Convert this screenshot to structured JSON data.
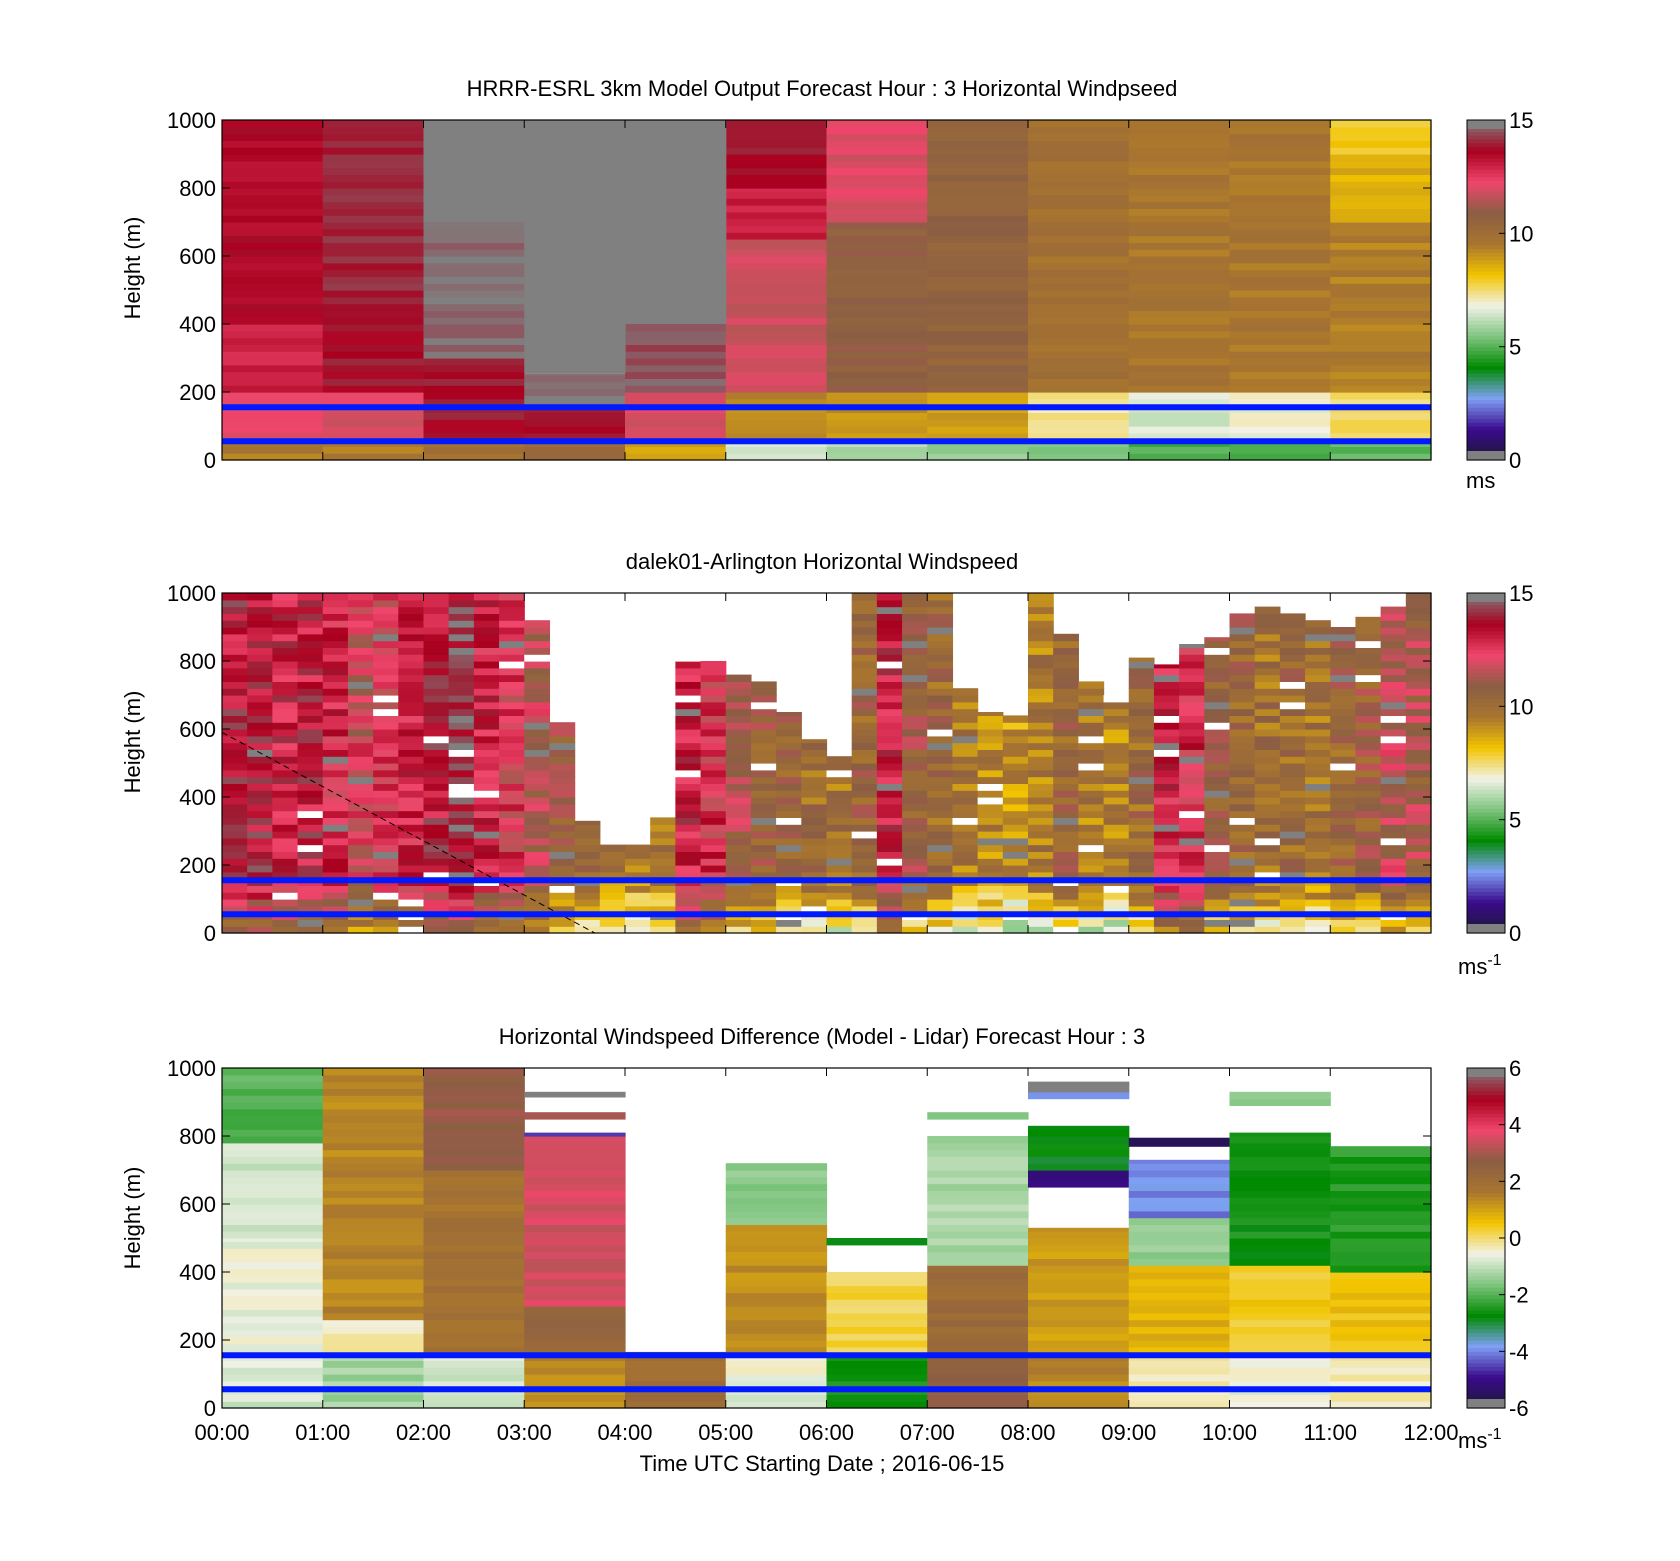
{
  "figure": {
    "xlabel": "Time UTC  Starting Date ; 2016-06-15",
    "x_tick_labels": [
      "00:00",
      "01:00",
      "02:00",
      "03:00",
      "04:00",
      "05:00",
      "06:00",
      "07:00",
      "08:00",
      "09:00",
      "10:00",
      "11:00",
      "12:00"
    ]
  },
  "colors": {
    "background": "#ffffff",
    "missing_gray": "#808080",
    "reference_line_blue": "#0019ff",
    "colormap_stops": [
      "#1a1a33",
      "#3a0a8c",
      "#7fa0f5",
      "#008a00",
      "#7ec47e",
      "#f2f2e8",
      "#f2c400",
      "#a8752f",
      "#8b5e44",
      "#f0466c",
      "#a8001e",
      "#808080"
    ]
  },
  "chart_data": [
    {
      "type": "heatmap",
      "title": "HRRR-ESRL 3km Model Output   Forecast Hour : 3 Horizontal Windpseed",
      "ylabel": "Height (m)",
      "xlim": [
        0,
        12
      ],
      "ylim": [
        0,
        1000
      ],
      "y_tick_labels": [
        "0",
        "200",
        "400",
        "600",
        "800",
        "1000"
      ],
      "colorbar": {
        "clim": [
          0,
          15
        ],
        "tick_labels": [
          "0",
          "5",
          "10",
          "15"
        ],
        "unit_label": "ms",
        "unit_superscript": ""
      },
      "reference_lines_m": [
        55,
        155
      ],
      "cells": [
        {
          "x0": 0,
          "x1": 1,
          "y0": 0,
          "y1": 60,
          "v": 9.5
        },
        {
          "x0": 0,
          "x1": 1,
          "y0": 60,
          "y1": 200,
          "v": 12.2
        },
        {
          "x0": 0,
          "x1": 1,
          "y0": 200,
          "y1": 400,
          "v": 13.0
        },
        {
          "x0": 0,
          "x1": 1,
          "y0": 400,
          "y1": 1000,
          "v": 13.5
        },
        {
          "x0": 1,
          "x1": 2,
          "y0": 0,
          "y1": 60,
          "v": 9.5
        },
        {
          "x0": 1,
          "x1": 2,
          "y0": 60,
          "y1": 200,
          "v": 12.0
        },
        {
          "x0": 1,
          "x1": 2,
          "y0": 200,
          "y1": 400,
          "v": 13.8
        },
        {
          "x0": 1,
          "x1": 2,
          "y0": 400,
          "y1": 1000,
          "v": 14.0
        },
        {
          "x0": 2,
          "x1": 3,
          "y0": 0,
          "y1": 60,
          "v": 9.8
        },
        {
          "x0": 2,
          "x1": 3,
          "y0": 60,
          "y1": 300,
          "v": 13.8
        },
        {
          "x0": 2,
          "x1": 3,
          "y0": 300,
          "y1": 700,
          "v": 14.8
        },
        {
          "x0": 3,
          "x1": 4,
          "y0": 0,
          "y1": 60,
          "v": 10.2
        },
        {
          "x0": 3,
          "x1": 4,
          "y0": 60,
          "y1": 150,
          "v": 13.8
        },
        {
          "x0": 3,
          "x1": 4,
          "y0": 150,
          "y1": 255,
          "v": 14.9
        },
        {
          "x0": 4,
          "x1": 5,
          "y0": 0,
          "y1": 60,
          "v": 8.6
        },
        {
          "x0": 4,
          "x1": 5,
          "y0": 60,
          "y1": 200,
          "v": 12.0
        },
        {
          "x0": 4,
          "x1": 5,
          "y0": 200,
          "y1": 400,
          "v": 14.5
        },
        {
          "x0": 5,
          "x1": 6,
          "y0": 0,
          "y1": 60,
          "v": 6.5
        },
        {
          "x0": 5,
          "x1": 6,
          "y0": 60,
          "y1": 200,
          "v": 9.2
        },
        {
          "x0": 5,
          "x1": 6,
          "y0": 200,
          "y1": 650,
          "v": 11.8
        },
        {
          "x0": 5,
          "x1": 6,
          "y0": 650,
          "y1": 800,
          "v": 13.0
        },
        {
          "x0": 5,
          "x1": 6,
          "y0": 800,
          "y1": 1000,
          "v": 13.9
        },
        {
          "x0": 6,
          "x1": 7,
          "y0": 0,
          "y1": 60,
          "v": 6.0
        },
        {
          "x0": 6,
          "x1": 7,
          "y0": 60,
          "y1": 200,
          "v": 9.0
        },
        {
          "x0": 6,
          "x1": 7,
          "y0": 200,
          "y1": 700,
          "v": 10.8
        },
        {
          "x0": 6,
          "x1": 7,
          "y0": 700,
          "y1": 1000,
          "v": 12.0
        },
        {
          "x0": 7,
          "x1": 8,
          "y0": 0,
          "y1": 60,
          "v": 5.8
        },
        {
          "x0": 7,
          "x1": 8,
          "y0": 60,
          "y1": 200,
          "v": 8.8
        },
        {
          "x0": 7,
          "x1": 8,
          "y0": 200,
          "y1": 1000,
          "v": 10.6
        },
        {
          "x0": 8,
          "x1": 9,
          "y0": 0,
          "y1": 60,
          "v": 5.5
        },
        {
          "x0": 8,
          "x1": 9,
          "y0": 60,
          "y1": 200,
          "v": 7.2
        },
        {
          "x0": 8,
          "x1": 9,
          "y0": 200,
          "y1": 1000,
          "v": 9.8
        },
        {
          "x0": 9,
          "x1": 10,
          "y0": 0,
          "y1": 60,
          "v": 5.0
        },
        {
          "x0": 9,
          "x1": 10,
          "y0": 60,
          "y1": 200,
          "v": 6.5
        },
        {
          "x0": 9,
          "x1": 10,
          "y0": 200,
          "y1": 1000,
          "v": 9.6
        },
        {
          "x0": 10,
          "x1": 11,
          "y0": 0,
          "y1": 60,
          "v": 5.0
        },
        {
          "x0": 10,
          "x1": 11,
          "y0": 60,
          "y1": 200,
          "v": 6.8
        },
        {
          "x0": 10,
          "x1": 11,
          "y0": 200,
          "y1": 1000,
          "v": 9.6
        },
        {
          "x0": 11,
          "x1": 12,
          "y0": 0,
          "y1": 60,
          "v": 5.2
        },
        {
          "x0": 11,
          "x1": 12,
          "y0": 60,
          "y1": 200,
          "v": 7.5
        },
        {
          "x0": 11,
          "x1": 12,
          "y0": 200,
          "y1": 700,
          "v": 9.4
        },
        {
          "x0": 11,
          "x1": 12,
          "y0": 700,
          "y1": 900,
          "v": 8.5
        },
        {
          "x0": 11,
          "x1": 12,
          "y0": 900,
          "y1": 1000,
          "v": 8.0
        }
      ],
      "missing_regions": [
        {
          "x0": 2,
          "x1": 3,
          "y0": 700,
          "y1": 1000
        },
        {
          "x0": 3,
          "x1": 4,
          "y0": 255,
          "y1": 1000
        },
        {
          "x0": 4,
          "x1": 5,
          "y0": 400,
          "y1": 1000
        }
      ]
    },
    {
      "type": "heatmap",
      "title": "dalek01-Arlington  Horizontal Windspeed",
      "ylabel": "Height (m)",
      "xlim": [
        0,
        12
      ],
      "ylim": [
        0,
        1000
      ],
      "y_tick_labels": [
        "0",
        "200",
        "400",
        "600",
        "800",
        "1000"
      ],
      "colorbar": {
        "clim": [
          0,
          15
        ],
        "tick_labels": [
          "0",
          "5",
          "10",
          "15"
        ],
        "unit_label": "ms",
        "unit_superscript": "-1"
      },
      "reference_lines_m": [
        55,
        155
      ],
      "dashed_line": {
        "x": [
          0,
          3.7
        ],
        "y": [
          590,
          0
        ]
      },
      "profile_width_h": 0.25,
      "profiles": [
        {
          "t": 0.0,
          "top": 1000,
          "v": 13.5
        },
        {
          "t": 0.25,
          "top": 1000,
          "v": 13.6
        },
        {
          "t": 0.5,
          "top": 1000,
          "v": 13.2
        },
        {
          "t": 0.75,
          "top": 1000,
          "v": 13.4
        },
        {
          "t": 1.0,
          "top": 1000,
          "v": 12.8
        },
        {
          "t": 1.25,
          "top": 1000,
          "v": 12.0
        },
        {
          "t": 1.5,
          "top": 1000,
          "v": 12.4
        },
        {
          "t": 1.75,
          "top": 1000,
          "v": 13.0
        },
        {
          "t": 2.0,
          "top": 1000,
          "v": 13.5
        },
        {
          "t": 2.25,
          "top": 1000,
          "v": 14.2
        },
        {
          "t": 2.5,
          "top": 1000,
          "v": 13.0
        },
        {
          "t": 2.75,
          "top": 1000,
          "v": 12.4
        },
        {
          "t": 3.0,
          "top": 920,
          "v": 11.6
        },
        {
          "t": 3.25,
          "top": 620,
          "v": 10.8
        },
        {
          "t": 3.5,
          "top": 330,
          "v": 10.2
        },
        {
          "t": 3.75,
          "top": 260,
          "v": 9.6
        },
        {
          "t": 4.0,
          "top": 260,
          "v": 9.4
        },
        {
          "t": 4.25,
          "top": 340,
          "v": 9.8
        },
        {
          "t": 4.5,
          "top": 830,
          "v": 13.2
        },
        {
          "t": 4.75,
          "top": 800,
          "v": 12.6
        },
        {
          "t": 5.0,
          "top": 760,
          "v": 11.2
        },
        {
          "t": 5.25,
          "top": 740,
          "v": 10.6
        },
        {
          "t": 5.5,
          "top": 650,
          "v": 10.4
        },
        {
          "t": 5.75,
          "top": 570,
          "v": 10.1
        },
        {
          "t": 6.0,
          "top": 520,
          "v": 9.8
        },
        {
          "t": 6.25,
          "top": 1000,
          "v": 10.4
        },
        {
          "t": 6.5,
          "top": 1000,
          "v": 13.2
        },
        {
          "t": 6.75,
          "top": 1000,
          "v": 10.8
        },
        {
          "t": 7.0,
          "top": 1000,
          "v": 10.2
        },
        {
          "t": 7.25,
          "top": 720,
          "v": 9.6
        },
        {
          "t": 7.5,
          "top": 650,
          "v": 9.4
        },
        {
          "t": 7.75,
          "top": 640,
          "v": 9.0
        },
        {
          "t": 8.0,
          "top": 1000,
          "v": 9.6
        },
        {
          "t": 8.25,
          "top": 880,
          "v": 10.4
        },
        {
          "t": 8.5,
          "top": 740,
          "v": 9.6
        },
        {
          "t": 8.75,
          "top": 700,
          "v": 9.4
        },
        {
          "t": 9.0,
          "top": 810,
          "v": 10.2
        },
        {
          "t": 9.25,
          "top": 790,
          "v": 13.0
        },
        {
          "t": 9.5,
          "top": 850,
          "v": 12.8
        },
        {
          "t": 9.75,
          "top": 870,
          "v": 10.8
        },
        {
          "t": 10.0,
          "top": 940,
          "v": 10.4
        },
        {
          "t": 10.25,
          "top": 960,
          "v": 10.0
        },
        {
          "t": 10.5,
          "top": 940,
          "v": 10.2
        },
        {
          "t": 10.75,
          "top": 920,
          "v": 9.8
        },
        {
          "t": 11.0,
          "top": 900,
          "v": 10.4
        },
        {
          "t": 11.25,
          "top": 930,
          "v": 10.6
        },
        {
          "t": 11.5,
          "top": 960,
          "v": 11.6
        },
        {
          "t": 11.75,
          "top": 1000,
          "v": 11.2
        }
      ]
    },
    {
      "type": "heatmap",
      "title": "Horizontal Windspeed Difference (Model - Lidar) Forecast Hour : 3",
      "ylabel": "Height (m)",
      "xlim": [
        0,
        12
      ],
      "ylim": [
        0,
        1000
      ],
      "y_tick_labels": [
        "0",
        "200",
        "400",
        "600",
        "800",
        "1000"
      ],
      "colorbar": {
        "clim": [
          -6,
          6
        ],
        "tick_labels": [
          "-6",
          "-4",
          "-2",
          "0",
          "2",
          "4",
          "6"
        ],
        "unit_label": "ms",
        "unit_superscript": "-1"
      },
      "reference_lines_m": [
        55,
        155
      ],
      "cells": [
        {
          "x0": 0,
          "x1": 1,
          "y0": 0,
          "y1": 150,
          "v": -0.8
        },
        {
          "x0": 0,
          "x1": 1,
          "y0": 150,
          "y1": 500,
          "v": -0.6
        },
        {
          "x0": 0,
          "x1": 1,
          "y0": 500,
          "y1": 780,
          "v": -0.9
        },
        {
          "x0": 0,
          "x1": 1,
          "y0": 780,
          "y1": 1000,
          "v": -2.0
        },
        {
          "x0": 1,
          "x1": 2,
          "y0": 0,
          "y1": 160,
          "v": -1.3
        },
        {
          "x0": 1,
          "x1": 2,
          "y0": 160,
          "y1": 260,
          "v": -0.3
        },
        {
          "x0": 1,
          "x1": 2,
          "y0": 260,
          "y1": 1000,
          "v": 1.4
        },
        {
          "x0": 2,
          "x1": 3,
          "y0": 0,
          "y1": 160,
          "v": -0.9
        },
        {
          "x0": 2,
          "x1": 3,
          "y0": 160,
          "y1": 700,
          "v": 1.8
        },
        {
          "x0": 2,
          "x1": 3,
          "y0": 700,
          "y1": 1000,
          "v": 2.8
        },
        {
          "x0": 3,
          "x1": 4,
          "y0": 0,
          "y1": 160,
          "v": 1.4
        },
        {
          "x0": 3,
          "x1": 4,
          "y0": 160,
          "y1": 300,
          "v": 2.3
        },
        {
          "x0": 3,
          "x1": 4,
          "y0": 300,
          "y1": 800,
          "v": 3.5
        },
        {
          "x0": 3,
          "x1": 4,
          "y0": 800,
          "y1": 810,
          "v": -4.5
        },
        {
          "x0": 3,
          "x1": 4,
          "y0": 850,
          "y1": 870,
          "v": 3.0
        },
        {
          "x0": 3,
          "x1": 4,
          "y0": 915,
          "y1": 930,
          "v": 6.5
        },
        {
          "x0": 4,
          "x1": 5,
          "y0": 0,
          "y1": 165,
          "v": 2.0
        },
        {
          "x0": 5,
          "x1": 6,
          "y0": 0,
          "y1": 100,
          "v": -0.8
        },
        {
          "x0": 5,
          "x1": 6,
          "y0": 100,
          "y1": 160,
          "v": -0.3
        },
        {
          "x0": 5,
          "x1": 6,
          "y0": 160,
          "y1": 540,
          "v": 1.3
        },
        {
          "x0": 5,
          "x1": 6,
          "y0": 540,
          "y1": 720,
          "v": -1.5
        },
        {
          "x0": 6,
          "x1": 7,
          "y0": 0,
          "y1": 160,
          "v": -2.6
        },
        {
          "x0": 6,
          "x1": 7,
          "y0": 160,
          "y1": 400,
          "v": 0.2
        },
        {
          "x0": 6,
          "x1": 7,
          "y0": 480,
          "y1": 500,
          "v": -2.8
        },
        {
          "x0": 7,
          "x1": 8,
          "y0": 0,
          "y1": 160,
          "v": 2.6
        },
        {
          "x0": 7,
          "x1": 8,
          "y0": 160,
          "y1": 420,
          "v": 2.1
        },
        {
          "x0": 7,
          "x1": 8,
          "y0": 420,
          "y1": 800,
          "v": -1.2
        },
        {
          "x0": 7,
          "x1": 8,
          "y0": 850,
          "y1": 870,
          "v": -1.5
        },
        {
          "x0": 8,
          "x1": 9,
          "y0": 0,
          "y1": 160,
          "v": 1.4
        },
        {
          "x0": 8,
          "x1": 9,
          "y0": 160,
          "y1": 530,
          "v": 1.1
        },
        {
          "x0": 8,
          "x1": 9,
          "y0": 650,
          "y1": 700,
          "v": -5.0
        },
        {
          "x0": 8,
          "x1": 9,
          "y0": 700,
          "y1": 830,
          "v": -2.8
        },
        {
          "x0": 8,
          "x1": 9,
          "y0": 910,
          "y1": 930,
          "v": -4.0
        },
        {
          "x0": 8,
          "x1": 9,
          "y0": 930,
          "y1": 960,
          "v": 6.5
        },
        {
          "x0": 9,
          "x1": 10,
          "y0": 0,
          "y1": 160,
          "v": -0.2
        },
        {
          "x0": 9,
          "x1": 10,
          "y0": 160,
          "y1": 420,
          "v": 0.8
        },
        {
          "x0": 9,
          "x1": 10,
          "y0": 420,
          "y1": 560,
          "v": -1.4
        },
        {
          "x0": 9,
          "x1": 10,
          "y0": 560,
          "y1": 730,
          "v": -4.0
        },
        {
          "x0": 9,
          "x1": 10,
          "y0": 770,
          "y1": 795,
          "v": -5.5
        },
        {
          "x0": 10,
          "x1": 11,
          "y0": 0,
          "y1": 160,
          "v": -0.6
        },
        {
          "x0": 10,
          "x1": 11,
          "y0": 160,
          "y1": 420,
          "v": 0.4
        },
        {
          "x0": 10,
          "x1": 11,
          "y0": 420,
          "y1": 810,
          "v": -2.6
        },
        {
          "x0": 10,
          "x1": 11,
          "y0": 890,
          "y1": 930,
          "v": -1.5
        },
        {
          "x0": 11,
          "x1": 12,
          "y0": 0,
          "y1": 160,
          "v": -0.4
        },
        {
          "x0": 11,
          "x1": 12,
          "y0": 160,
          "y1": 400,
          "v": 0.6
        },
        {
          "x0": 11,
          "x1": 12,
          "y0": 400,
          "y1": 770,
          "v": -2.4
        }
      ]
    }
  ]
}
